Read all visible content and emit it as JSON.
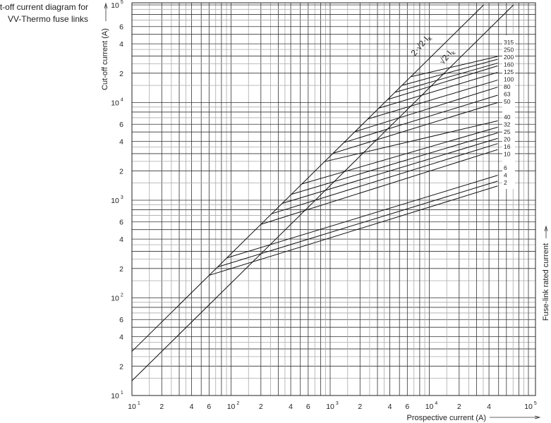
{
  "chart_data": {
    "type": "line",
    "title": [
      "Cut-off current diagram for",
      "VV-Thermo fuse links"
    ],
    "xlabel": "Prospective current (A)",
    "ylabel": "Cut-off current (A)",
    "right_label": "Fuse-link rated current",
    "x_scale": "log",
    "y_scale": "log",
    "xlim": [
      10,
      100000
    ],
    "ylim": [
      10,
      100000
    ],
    "grid": true,
    "x_ticks": [
      {
        "value": 10,
        "base": "10",
        "exp": "1"
      },
      {
        "value": 20,
        "base": "2",
        "exp": ""
      },
      {
        "value": 40,
        "base": "4",
        "exp": ""
      },
      {
        "value": 60,
        "base": "6",
        "exp": ""
      },
      {
        "value": 100,
        "base": "10",
        "exp": "2"
      },
      {
        "value": 200,
        "base": "2",
        "exp": ""
      },
      {
        "value": 400,
        "base": "4",
        "exp": ""
      },
      {
        "value": 600,
        "base": "6",
        "exp": ""
      },
      {
        "value": 1000,
        "base": "10",
        "exp": "3"
      },
      {
        "value": 2000,
        "base": "2",
        "exp": ""
      },
      {
        "value": 4000,
        "base": "4",
        "exp": ""
      },
      {
        "value": 6000,
        "base": "6",
        "exp": ""
      },
      {
        "value": 10000,
        "base": "10",
        "exp": "4"
      },
      {
        "value": 20000,
        "base": "2",
        "exp": ""
      },
      {
        "value": 40000,
        "base": "4",
        "exp": ""
      },
      {
        "value": 100000,
        "base": "10",
        "exp": "5"
      }
    ],
    "y_ticks": [
      {
        "value": 10,
        "base": "10",
        "exp": "1"
      },
      {
        "value": 20,
        "base": "2",
        "exp": ""
      },
      {
        "value": 40,
        "base": "4",
        "exp": ""
      },
      {
        "value": 60,
        "base": "6",
        "exp": ""
      },
      {
        "value": 100,
        "base": "10",
        "exp": "2"
      },
      {
        "value": 200,
        "base": "2",
        "exp": ""
      },
      {
        "value": 400,
        "base": "4",
        "exp": ""
      },
      {
        "value": 600,
        "base": "6",
        "exp": ""
      },
      {
        "value": 1000,
        "base": "10",
        "exp": "3"
      },
      {
        "value": 2000,
        "base": "2",
        "exp": ""
      },
      {
        "value": 4000,
        "base": "4",
        "exp": ""
      },
      {
        "value": 6000,
        "base": "6",
        "exp": ""
      },
      {
        "value": 10000,
        "base": "10",
        "exp": "4"
      },
      {
        "value": 20000,
        "base": "2",
        "exp": ""
      },
      {
        "value": 40000,
        "base": "4",
        "exp": ""
      },
      {
        "value": 60000,
        "base": "6",
        "exp": ""
      },
      {
        "value": 100000,
        "base": "10",
        "exp": "5"
      }
    ],
    "reference_lines": [
      {
        "name": "2·√2·I",
        "sub": "k",
        "factor": 2.83
      },
      {
        "name": "√2·I",
        "sub": "k",
        "factor": 1.414
      }
    ],
    "series": [
      {
        "name": "2",
        "points": [
          [
            60,
            170
          ],
          [
            49000,
            1400
          ]
        ]
      },
      {
        "name": "4",
        "points": [
          [
            73,
            207
          ],
          [
            49000,
            1570
          ]
        ]
      },
      {
        "name": "6",
        "points": [
          [
            91,
            257
          ],
          [
            49000,
            1800
          ]
        ]
      },
      {
        "name": "10",
        "points": [
          [
            200,
            566
          ],
          [
            49000,
            3300
          ]
        ]
      },
      {
        "name": "16",
        "points": [
          [
            257,
            727
          ],
          [
            49000,
            3800
          ]
        ]
      },
      {
        "name": "20",
        "points": [
          [
            328,
            928
          ],
          [
            49000,
            4300
          ]
        ]
      },
      {
        "name": "25",
        "points": [
          [
            406,
            1149
          ],
          [
            49000,
            4900
          ]
        ]
      },
      {
        "name": "32",
        "points": [
          [
            519,
            1469
          ],
          [
            49000,
            5600
          ]
        ]
      },
      {
        "name": "40",
        "points": [
          [
            877,
            2482
          ],
          [
            49000,
            6500
          ]
        ]
      },
      {
        "name": "50",
        "points": [
          [
            1070,
            3028
          ],
          [
            49000,
            10000
          ]
        ]
      },
      {
        "name": "63",
        "points": [
          [
            1380,
            3905
          ],
          [
            49000,
            11900
          ]
        ]
      },
      {
        "name": "80",
        "points": [
          [
            1780,
            5037
          ],
          [
            49000,
            14400
          ]
        ]
      },
      {
        "name": "100",
        "points": [
          [
            2400,
            6792
          ],
          [
            49000,
            17000
          ]
        ]
      },
      {
        "name": "125",
        "points": [
          [
            3100,
            8773
          ],
          [
            49000,
            20400
          ]
        ]
      },
      {
        "name": "160",
        "points": [
          [
            3800,
            10754
          ],
          [
            49000,
            23800
          ]
        ]
      },
      {
        "name": "200",
        "points": [
          [
            4500,
            12735
          ],
          [
            49000,
            25400
          ]
        ]
      },
      {
        "name": "250",
        "points": [
          [
            5300,
            15000
          ],
          [
            49000,
            27800
          ]
        ]
      },
      {
        "name": "315",
        "points": [
          [
            6500,
            18395
          ],
          [
            49000,
            29700
          ]
        ]
      }
    ]
  }
}
